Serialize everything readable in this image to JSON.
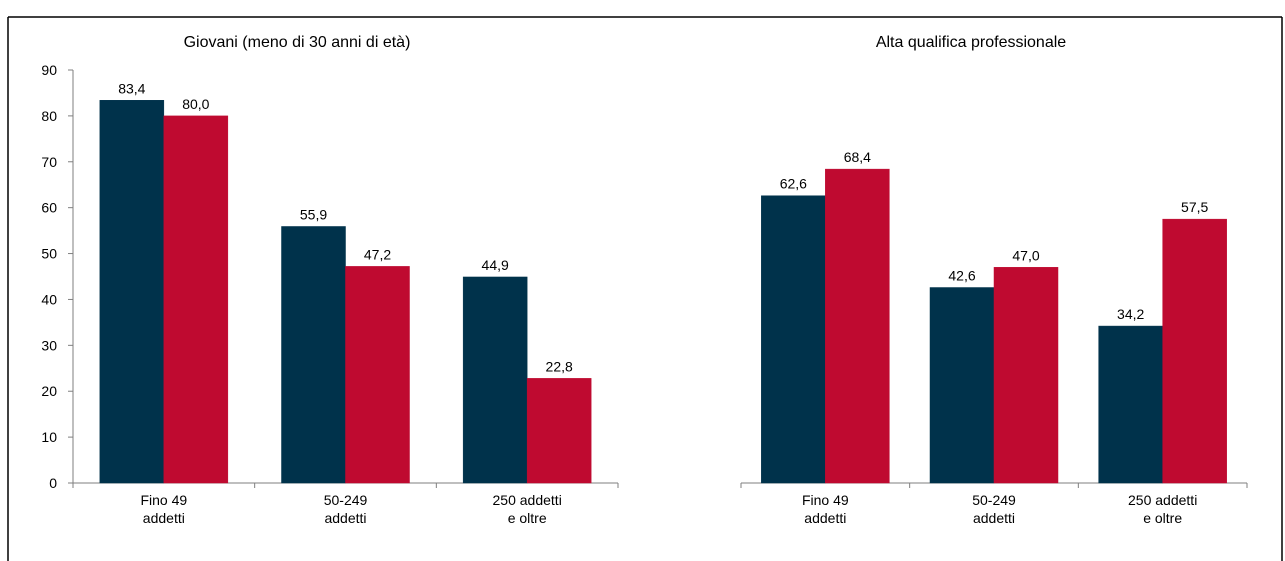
{
  "colors": {
    "series_a": "#00324b",
    "series_b": "#bf0a30",
    "axis": "#7f7f7f",
    "frame": "#000000"
  },
  "chart_data": [
    {
      "type": "bar",
      "title": "Giovani (meno di 30 anni di età)",
      "categories": [
        [
          "Fino 49",
          "addetti"
        ],
        [
          "50-249",
          "addetti"
        ],
        [
          "250 addetti",
          "e oltre"
        ]
      ],
      "series": [
        {
          "values": [
            83.4,
            55.9,
            44.9
          ],
          "labels": [
            "83,4",
            "55,9",
            "44,9"
          ]
        },
        {
          "values": [
            80.0,
            47.2,
            22.8
          ],
          "labels": [
            "80,0",
            "47,2",
            "22,8"
          ]
        }
      ],
      "ylim": [
        0,
        90
      ],
      "yticks": [
        "0",
        "10",
        "20",
        "30",
        "40",
        "50",
        "60",
        "70",
        "80",
        "90"
      ],
      "y_axis_visible": true,
      "grid": false
    },
    {
      "type": "bar",
      "title": "Alta qualifica professionale",
      "categories": [
        [
          "Fino 49",
          "addetti"
        ],
        [
          "50-249",
          "addetti"
        ],
        [
          "250 addetti",
          "e oltre"
        ]
      ],
      "series": [
        {
          "values": [
            62.6,
            42.6,
            34.2
          ],
          "labels": [
            "62,6",
            "42,6",
            "34,2"
          ]
        },
        {
          "values": [
            68.4,
            47.0,
            57.5
          ],
          "labels": [
            "68,4",
            "47,0",
            "57,5"
          ]
        }
      ],
      "ylim": [
        0,
        90
      ],
      "yticks": [],
      "y_axis_visible": false,
      "grid": false
    }
  ]
}
